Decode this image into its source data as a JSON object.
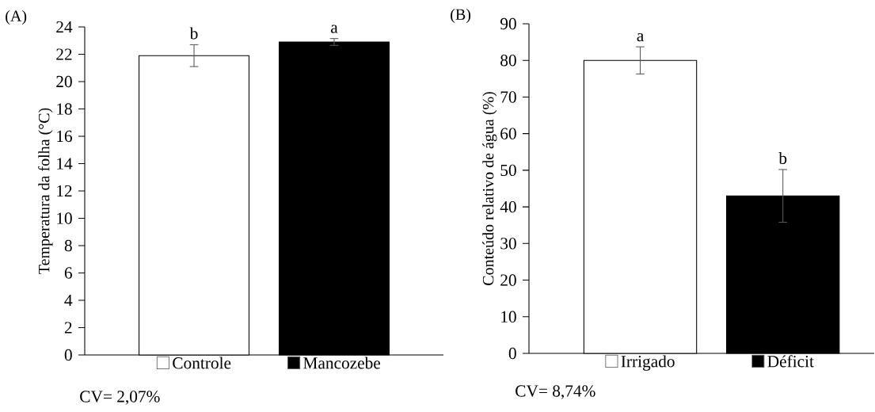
{
  "chart_data": [
    {
      "type": "bar",
      "ylabel": "Temperatura da folha (°C)",
      "categories": [
        "Controle",
        "Mancozebe"
      ],
      "values": [
        21.9,
        22.9
      ],
      "errors": [
        0.8,
        0.25
      ],
      "colors": [
        "#ffffff",
        "#000000"
      ],
      "ylim": [
        0,
        24
      ],
      "yticks": [
        0,
        2,
        4,
        6,
        8,
        10,
        12,
        14,
        16,
        18,
        20,
        22,
        24
      ],
      "grid": false,
      "annotations": [
        "(A)",
        {
          "text": "b",
          "x": "Controle",
          "y": 22.7
        },
        {
          "text": "a",
          "x": "Mancozebe",
          "y": 23.15
        },
        "CV= 2,07%"
      ]
    },
    {
      "type": "bar",
      "ylabel": "Conteúdo relativo de água (%)",
      "categories": [
        "Irrigado",
        "Déficit"
      ],
      "values": [
        80,
        43
      ],
      "errors": [
        3.7,
        7.2
      ],
      "colors": [
        "#ffffff",
        "#000000"
      ],
      "ylim": [
        0,
        90
      ],
      "yticks": [
        0,
        10,
        20,
        30,
        40,
        50,
        60,
        70,
        80,
        90
      ],
      "grid": false,
      "annotations": [
        "(B)",
        {
          "text": "a",
          "x": "Irrigado",
          "y": 83.7
        },
        {
          "text": "b",
          "x": "Déficit",
          "y": 50.2
        },
        "CV= 8,74%"
      ]
    }
  ]
}
